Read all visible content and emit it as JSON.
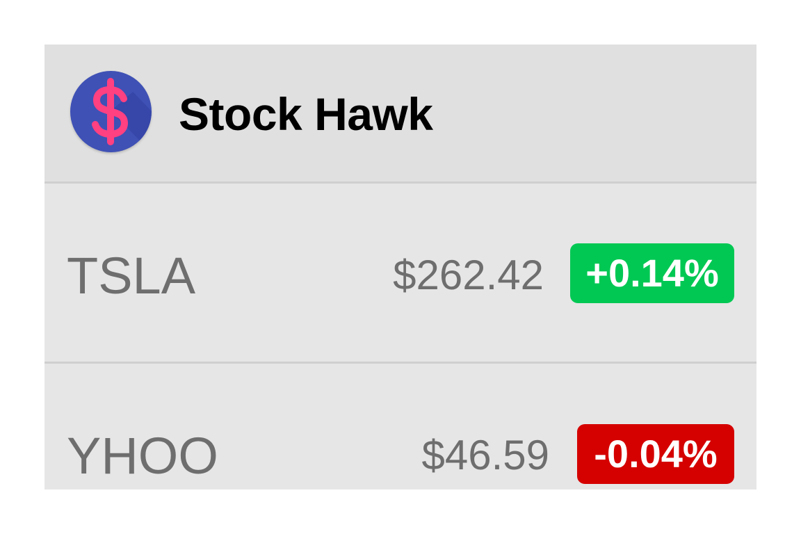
{
  "app": {
    "title": "Stock Hawk",
    "icon": "dollar-icon",
    "icon_colors": {
      "background": "#3f51b5",
      "glyph": "#ff4081"
    }
  },
  "stocks": [
    {
      "symbol": "TSLA",
      "price": "$262.42",
      "change": "+0.14%",
      "direction": "up",
      "badge_color": "#00c853"
    },
    {
      "symbol": "YHOO",
      "price": "$46.59",
      "change": "-0.04%",
      "direction": "down",
      "badge_color": "#d50000"
    }
  ]
}
